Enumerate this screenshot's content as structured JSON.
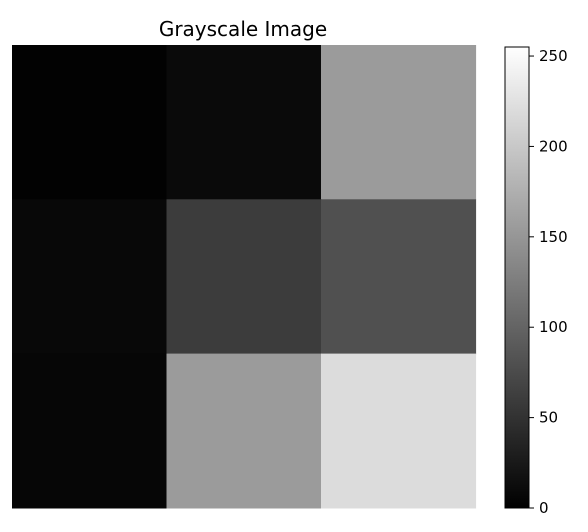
{
  "chart_data": {
    "type": "heatmap",
    "title": "Grayscale Image",
    "xlabel": "",
    "ylabel": "",
    "rows": 3,
    "cols": 3,
    "values": [
      [
        2,
        10,
        155
      ],
      [
        8,
        60,
        80
      ],
      [
        6,
        155,
        220
      ]
    ],
    "colormap": "gray",
    "vmin": 0,
    "vmax": 255,
    "axis_visible": false,
    "colorbar": {
      "ticks": [
        "0",
        "50",
        "100",
        "150",
        "200",
        "250"
      ],
      "tick_values": [
        0,
        50,
        100,
        150,
        200,
        250
      ],
      "placement": "right"
    }
  }
}
